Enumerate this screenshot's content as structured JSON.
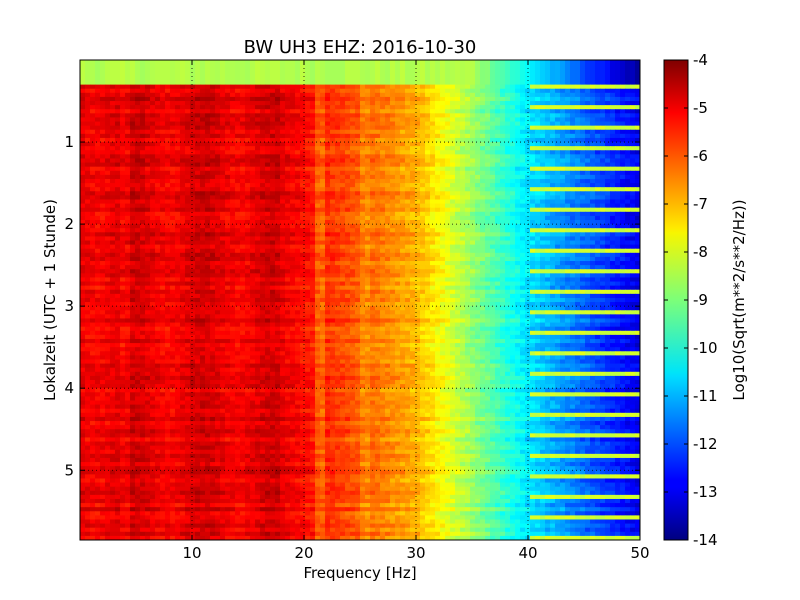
{
  "chart_data": {
    "type": "heatmap",
    "title": "BW UH3 EHZ: 2016-10-30",
    "xlabel": "Frequency [Hz]",
    "ylabel": "Lokalzeit (UTC + 1 Stunde)",
    "xlim": [
      0,
      50
    ],
    "ylim": [
      5.85,
      0
    ],
    "x_ticks": [
      10,
      20,
      30,
      40,
      50
    ],
    "y_ticks": [
      1,
      2,
      3,
      4,
      5
    ],
    "grid": true,
    "grid_style": "dotted",
    "colorbar": {
      "label": "Log10(Sqrt(m**2/s**2/Hz))",
      "range": [
        -14,
        -4
      ],
      "ticks": [
        -4,
        -5,
        -6,
        -7,
        -8,
        -9,
        -10,
        -11,
        -12,
        -13,
        -14
      ],
      "colormap": "jet",
      "placement": "right"
    },
    "features": {
      "spectral_line_hz": 21.5,
      "secondary_lines_hz": [
        4,
        25.5
      ],
      "first_row_hours": [
        0,
        0.3
      ],
      "first_row_level": -8.5,
      "high_freq_bands_interval_hours": 0.25,
      "description_levels": {
        "below_18hz": -5,
        "at_30hz": -7,
        "at_40hz": -10.5,
        "at_50hz": -13
      }
    }
  }
}
